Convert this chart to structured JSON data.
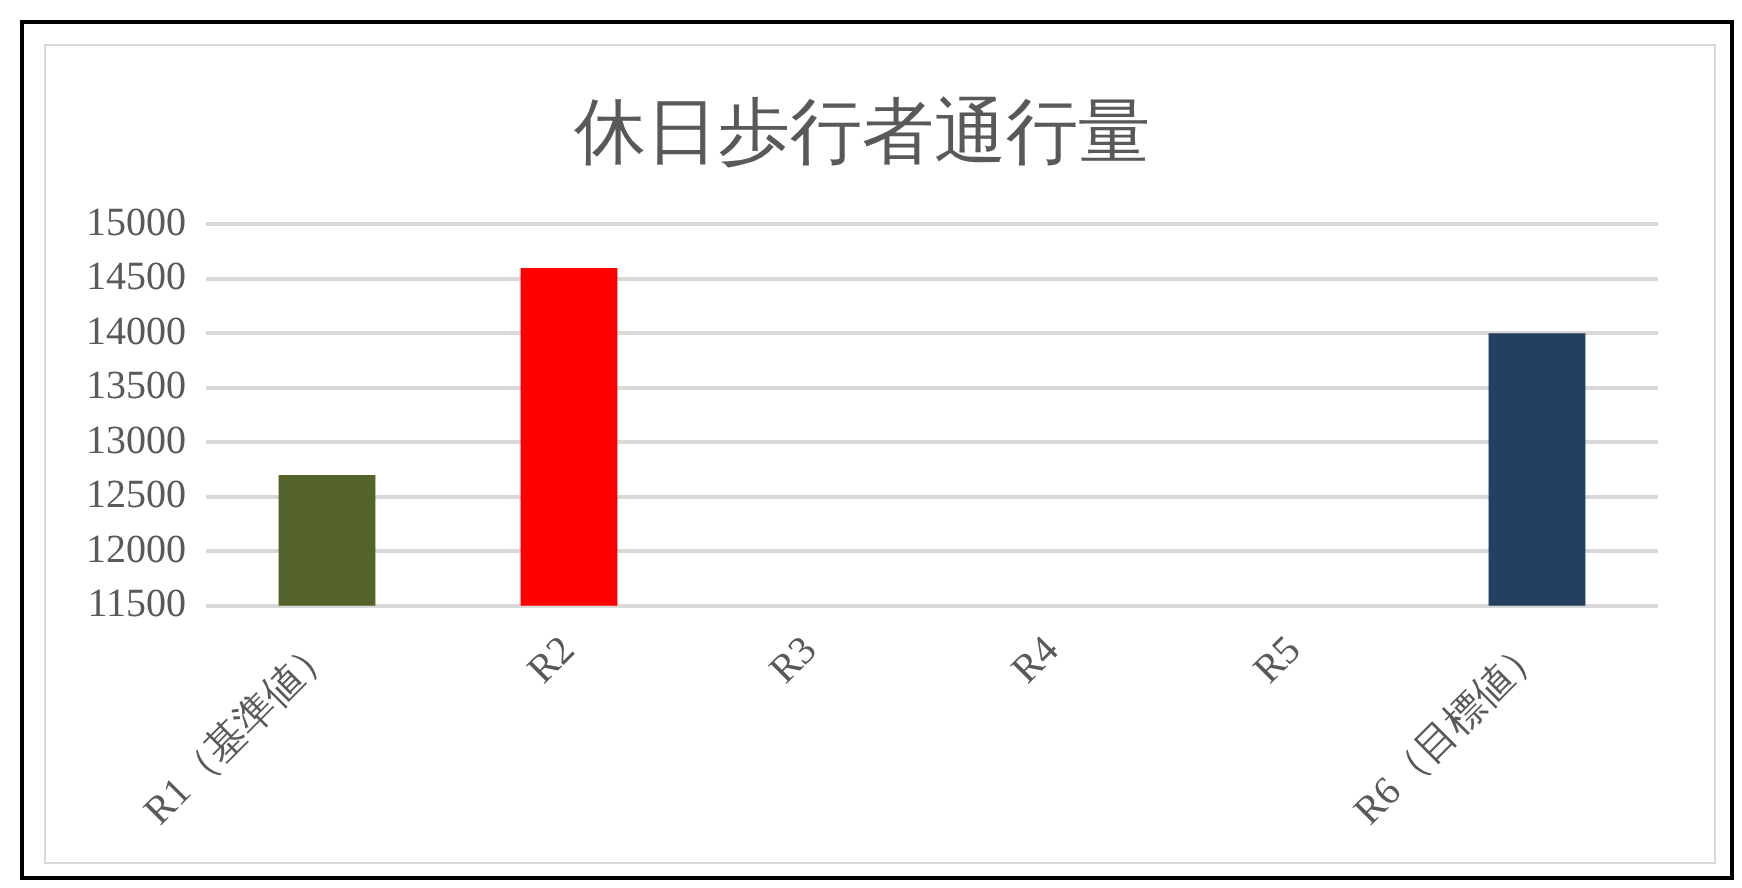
{
  "chart_data": {
    "type": "bar",
    "title": "休日歩行者通行量",
    "categories": [
      "R1（基準値）",
      "R2",
      "R3",
      "R4",
      "R5",
      "R6（目標値）"
    ],
    "values": [
      12700,
      14600,
      null,
      null,
      null,
      14000
    ],
    "colors": [
      "#536329",
      "#ff0000",
      "#4472c4",
      "#4472c4",
      "#4472c4",
      "#243f60"
    ],
    "ylim": [
      11500,
      15000
    ],
    "yticks": [
      11500,
      12000,
      12500,
      13000,
      13500,
      14000,
      14500,
      15000
    ],
    "grid": "y",
    "legend": false
  }
}
